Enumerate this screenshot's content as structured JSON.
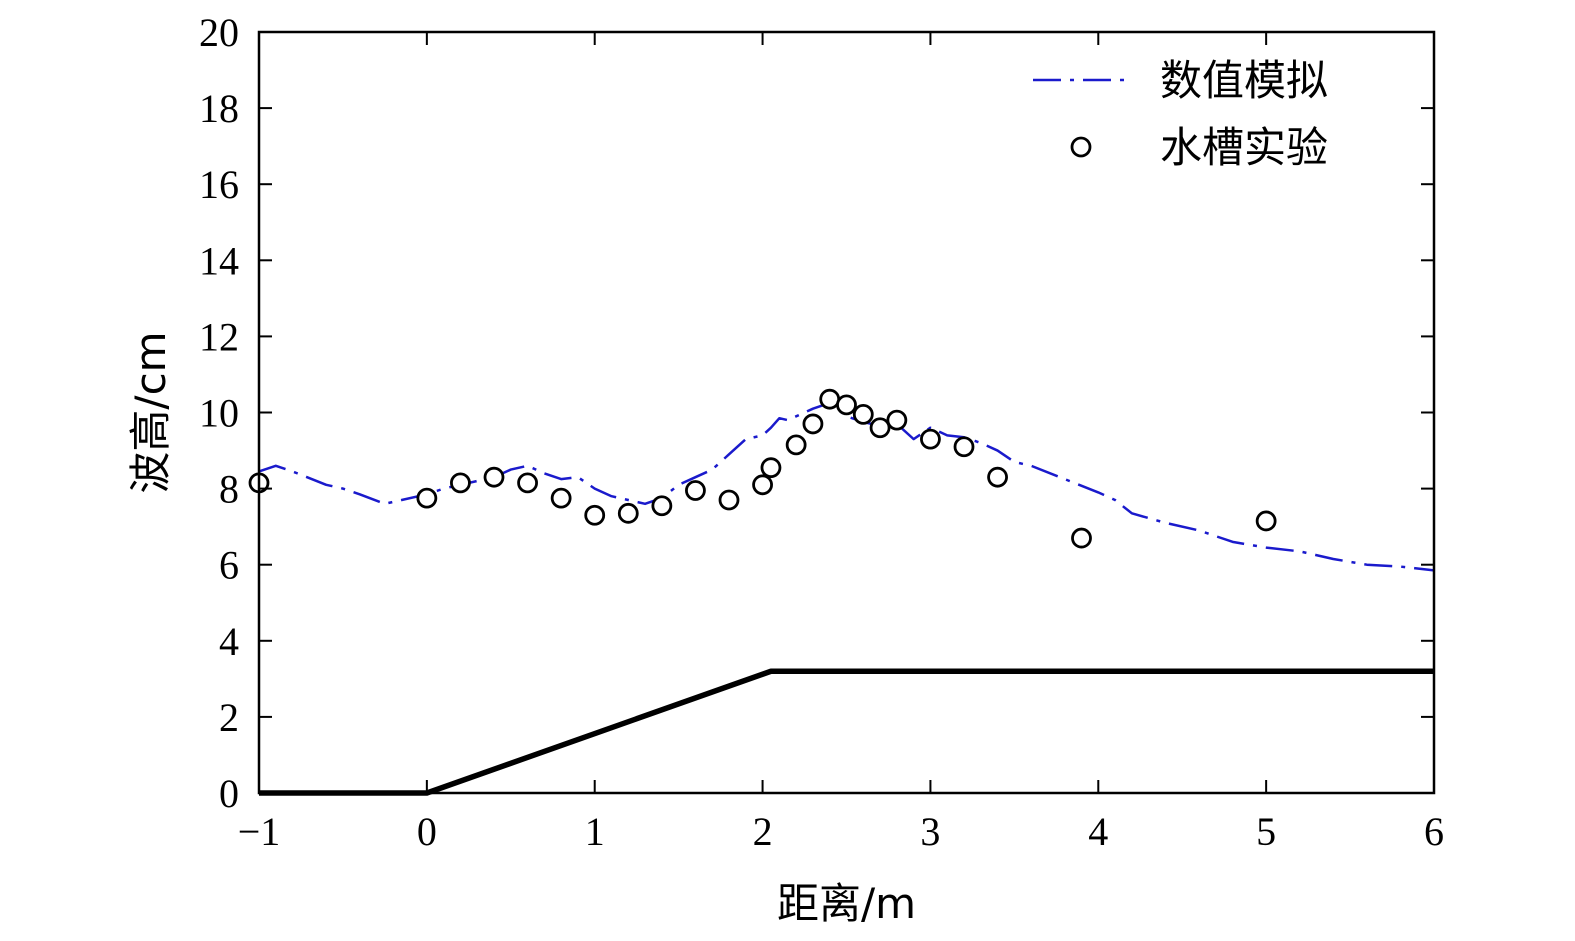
{
  "chart_data": {
    "type": "line",
    "xlabel": "距离/m",
    "ylabel": "波高/cm",
    "xlim": [
      -1,
      6
    ],
    "ylim": [
      0,
      20
    ],
    "x_ticks": [
      -1,
      0,
      1,
      2,
      3,
      4,
      5,
      6
    ],
    "x_tick_labels": [
      "−1",
      "0",
      "1",
      "2",
      "3",
      "4",
      "5",
      "6"
    ],
    "y_ticks": [
      0,
      2,
      4,
      6,
      8,
      10,
      12,
      14,
      16,
      18,
      20
    ],
    "y_tick_labels": [
      "0",
      "2",
      "4",
      "6",
      "8",
      "10",
      "12",
      "14",
      "16",
      "18",
      "20"
    ],
    "grid": false,
    "legend_position": "top-right",
    "series": [
      {
        "name": "数值模拟",
        "style": "dash-dot",
        "color": "#1a1acc",
        "x": [
          -1,
          -0.9,
          -0.8,
          -0.6,
          -0.5,
          -0.4,
          -0.25,
          -0.15,
          0,
          0.1,
          0.2,
          0.3,
          0.4,
          0.5,
          0.6,
          0.7,
          0.8,
          0.9,
          1.0,
          1.1,
          1.2,
          1.3,
          1.4,
          1.5,
          1.6,
          1.7,
          1.8,
          1.9,
          2.0,
          2.05,
          2.1,
          2.15,
          2.2,
          2.3,
          2.4,
          2.5,
          2.6,
          2.7,
          2.8,
          2.9,
          3.0,
          3.1,
          3.2,
          3.3,
          3.4,
          3.5,
          3.6,
          3.8,
          4.0,
          4.1,
          4.2,
          4.4,
          4.6,
          4.8,
          5.0,
          5.2,
          5.4,
          5.6,
          5.8,
          6.0
        ],
        "y": [
          8.45,
          8.6,
          8.45,
          8.1,
          8.0,
          7.85,
          7.6,
          7.7,
          7.85,
          8.0,
          8.1,
          8.2,
          8.3,
          8.5,
          8.6,
          8.4,
          8.25,
          8.3,
          8.0,
          7.8,
          7.7,
          7.6,
          7.75,
          8.1,
          8.3,
          8.5,
          8.9,
          9.3,
          9.4,
          9.6,
          9.85,
          9.8,
          9.9,
          10.1,
          10.25,
          9.9,
          9.75,
          9.65,
          9.7,
          9.3,
          9.6,
          9.4,
          9.35,
          9.2,
          9.0,
          8.7,
          8.6,
          8.25,
          7.9,
          7.7,
          7.35,
          7.1,
          6.9,
          6.6,
          6.45,
          6.35,
          6.15,
          6.0,
          5.95,
          5.85
        ]
      },
      {
        "name": "水槽实验",
        "style": "open-circle",
        "color": "#000000",
        "x": [
          -1.0,
          0.0,
          0.2,
          0.4,
          0.6,
          0.8,
          1.0,
          1.2,
          1.4,
          1.6,
          1.8,
          2.0,
          2.05,
          2.2,
          2.3,
          2.4,
          2.5,
          2.6,
          2.7,
          2.8,
          3.0,
          3.2,
          3.4,
          3.9,
          5.0
        ],
        "y": [
          8.15,
          7.75,
          8.15,
          8.3,
          8.15,
          7.75,
          7.3,
          7.35,
          7.55,
          7.95,
          7.7,
          8.1,
          8.55,
          9.15,
          9.7,
          10.35,
          10.2,
          9.95,
          9.6,
          9.8,
          9.3,
          9.1,
          8.3,
          6.7,
          7.15
        ]
      }
    ],
    "bathymetry": {
      "x": [
        -1,
        0,
        2.05,
        6
      ],
      "y": [
        0,
        0,
        3.2,
        3.2
      ]
    }
  }
}
